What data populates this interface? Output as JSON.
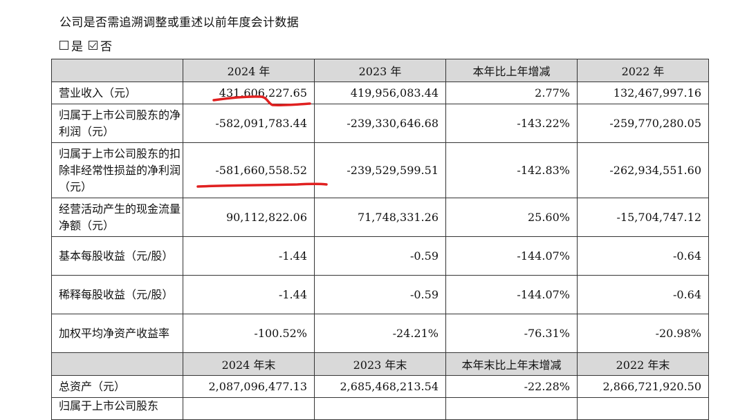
{
  "question": "公司是否需追溯调整或重述以前年度会计数据",
  "choices": [
    {
      "label": "是",
      "checked": false
    },
    {
      "label": "否",
      "checked": true
    }
  ],
  "header1": [
    "",
    "2024 年",
    "2023 年",
    "本年比上年增减",
    "2022 年"
  ],
  "rows1": [
    {
      "label": "营业收入（元）",
      "values": [
        "431,606,227.65",
        "419,956,083.44",
        "2.77%",
        "132,467,997.16"
      ]
    },
    {
      "label": "归属于上市公司股东的净利润（元）",
      "values": [
        "-582,091,783.44",
        "-239,330,646.68",
        "-143.22%",
        "-259,770,280.05"
      ]
    },
    {
      "label": "归属于上市公司股东的扣除非经常性损益的净利润（元）",
      "values": [
        "-581,660,558.52",
        "-239,529,599.51",
        "-142.83%",
        "-262,934,551.60"
      ]
    },
    {
      "label": "经营活动产生的现金流量净额（元）",
      "values": [
        "90,112,822.06",
        "71,748,331.26",
        "25.60%",
        "-15,704,747.12"
      ]
    },
    {
      "label": "基本每股收益（元/股）",
      "values": [
        "-1.44",
        "-0.59",
        "-144.07%",
        "-0.64"
      ]
    },
    {
      "label": "稀释每股收益（元/股）",
      "values": [
        "-1.44",
        "-0.59",
        "-144.07%",
        "-0.64"
      ]
    },
    {
      "label": "加权平均净资产收益率",
      "values": [
        "-100.52%",
        "-24.21%",
        "-76.31%",
        "-20.98%"
      ]
    }
  ],
  "header2": [
    "",
    "2024 年末",
    "2023 年末",
    "本年末比上年末增减",
    "2022 年末"
  ],
  "rows2": [
    {
      "label": "总资产（元）",
      "values": [
        "2,087,096,477.13",
        "2,685,468,213.54",
        "-22.28%",
        "2,866,721,920.50"
      ]
    },
    {
      "label": "归属于上市公司股东",
      "values": [
        "",
        "",
        "",
        ""
      ]
    }
  ],
  "annotation_color": "#e02020"
}
